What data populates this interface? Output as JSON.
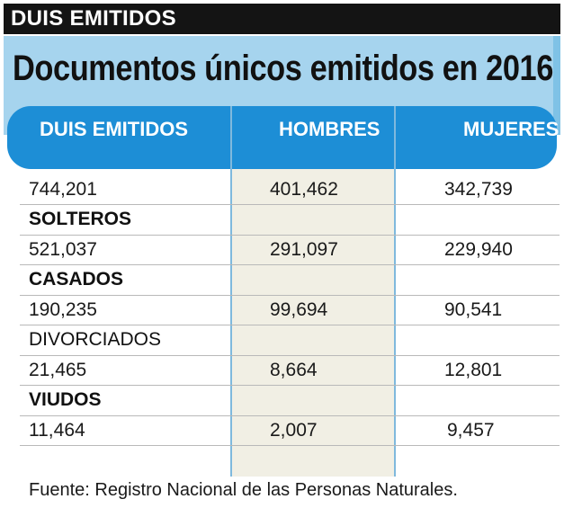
{
  "banner": "DUIS EMITIDOS",
  "chart_data": {
    "type": "table",
    "title": "Documentos únicos emitidos en 2016",
    "columns": [
      "DUIS EMITIDOS",
      "HOMBRES",
      "MUJERES"
    ],
    "rows": [
      {
        "label": "",
        "values": [
          "744,201",
          "401,462",
          "342,739"
        ]
      },
      {
        "label": "SOLTEROS",
        "values": [
          "521,037",
          "291,097",
          "229,940"
        ]
      },
      {
        "label": "CASADOS",
        "values": [
          "190,235",
          "99,694",
          "90,541"
        ]
      },
      {
        "label": "DIVORCIADOS",
        "values": [
          "21,465",
          "8,664",
          "12,801"
        ]
      },
      {
        "label": "VIUDOS",
        "values": [
          "11,464",
          "2,007",
          "9,457"
        ]
      }
    ],
    "source": "Fuente: Registro Nacional de las Personas Naturales.",
    "colors": {
      "header": "#1d8ed6",
      "title_panel": "#a6d4ee",
      "banner": "#141414",
      "shaded_column": "#f1efe4"
    }
  }
}
